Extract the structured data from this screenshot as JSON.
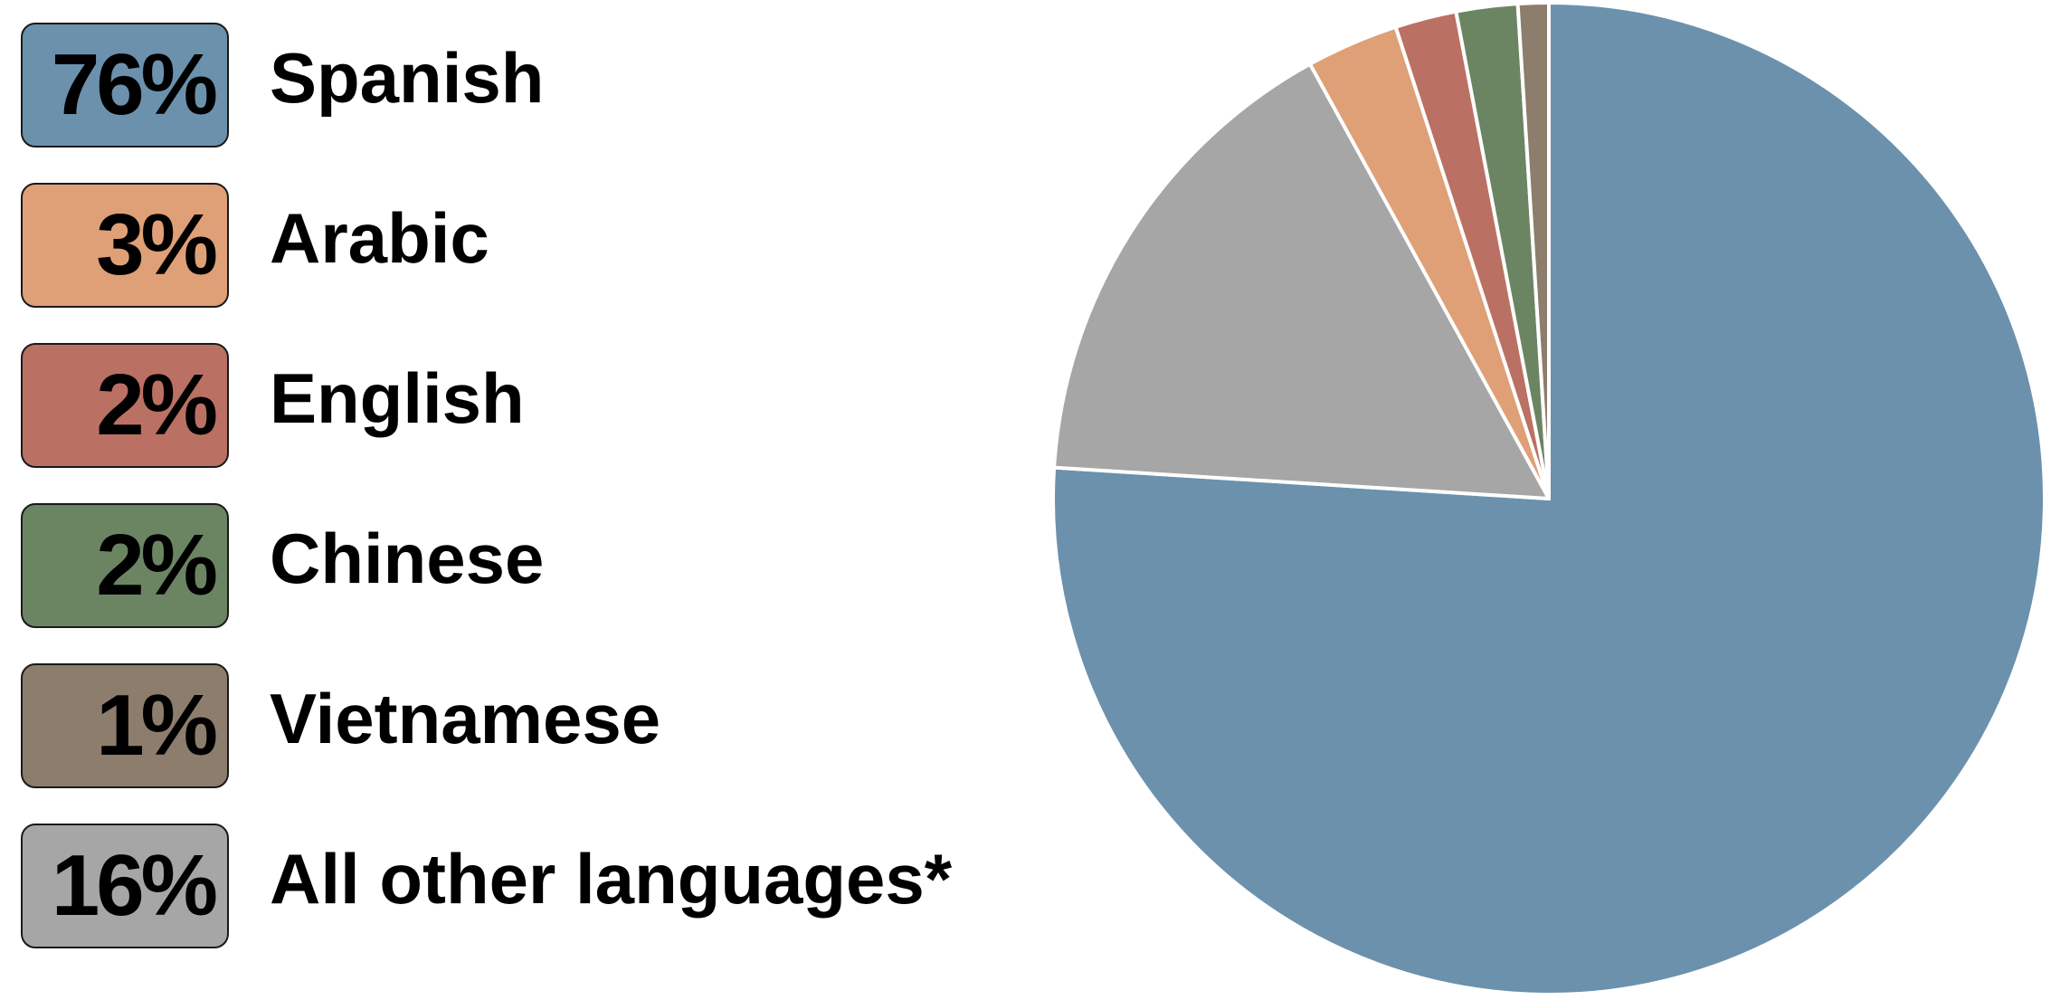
{
  "chart_data": {
    "type": "pie",
    "start_angle": "12 o'clock",
    "direction": "clockwise",
    "legend_placement": "left",
    "slices": [
      {
        "label": "Spanish",
        "value": 76,
        "display": "76%",
        "color": "#6b91ad"
      },
      {
        "label": "All other languages*",
        "value": 16,
        "display": "16%",
        "color": "#a6a6a6"
      },
      {
        "label": "Arabic",
        "value": 3,
        "display": "3%",
        "color": "#dfa077"
      },
      {
        "label": "English",
        "value": 2,
        "display": "2%",
        "color": "#bb7064"
      },
      {
        "label": "Chinese",
        "value": 2,
        "display": "2%",
        "color": "#6b8563"
      },
      {
        "label": "Vietnamese",
        "value": 1,
        "display": "1%",
        "color": "#8c7d6c"
      }
    ],
    "legend_order": [
      "Spanish",
      "Arabic",
      "English",
      "Chinese",
      "Vietnamese",
      "All other languages*"
    ]
  }
}
